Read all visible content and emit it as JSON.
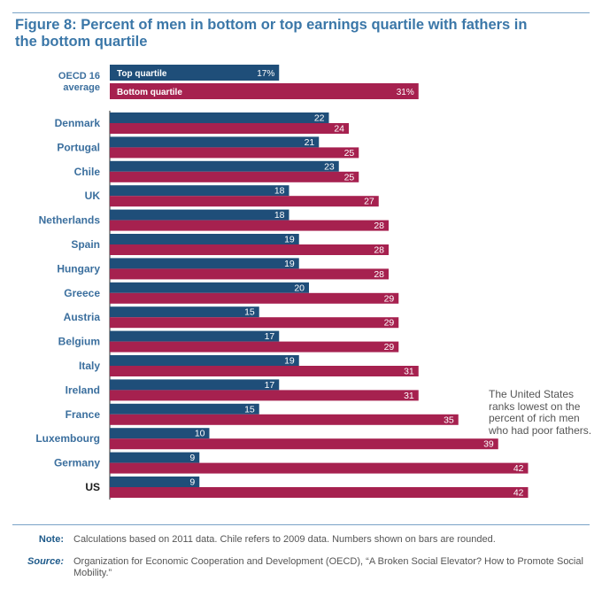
{
  "title": "Figure 8: Percent of men in bottom or top earnings quartile with fathers in the bottom quartile",
  "callout": "The United States ranks lowest on the percent of rich men who had poor fathers.",
  "note": {
    "label": "Note:",
    "text": "Calculations based on 2011 data. Chile refers to 2009 data. Numbers shown on bars are rounded."
  },
  "source": {
    "label": "Source:",
    "text": "Organization for Economic Cooperation and Development (OECD), “A Broken Social Elevator? How to Promote Social Mobility.”"
  },
  "chart_data": {
    "type": "bar",
    "orientation": "horizontal",
    "average": {
      "label": [
        "OECD 16",
        "average"
      ],
      "top": 17,
      "bottom": 31,
      "top_text": "17%",
      "bottom_text": "31%",
      "top_name": "Top quartile",
      "bottom_name": "Bottom quartile"
    },
    "categories": [
      "Denmark",
      "Portugal",
      "Chile",
      "UK",
      "Netherlands",
      "Spain",
      "Hungary",
      "Greece",
      "Austria",
      "Belgium",
      "Italy",
      "Ireland",
      "France",
      "Luxembourg",
      "Germany",
      "US"
    ],
    "series": [
      {
        "name": "Top quartile",
        "values": [
          22,
          21,
          23,
          18,
          18,
          19,
          19,
          20,
          15,
          17,
          19,
          17,
          15,
          10,
          9,
          9
        ]
      },
      {
        "name": "Bottom quartile",
        "values": [
          24,
          25,
          25,
          27,
          28,
          28,
          28,
          29,
          29,
          29,
          31,
          31,
          35,
          39,
          42,
          42
        ]
      }
    ],
    "colors": {
      "top": "#1f4e79",
      "bottom": "#a6214f",
      "axis_label": "#3b6f9e",
      "highlight_label": "#1a1a1a"
    },
    "highlight": "US",
    "xlim": [
      0,
      42
    ]
  }
}
